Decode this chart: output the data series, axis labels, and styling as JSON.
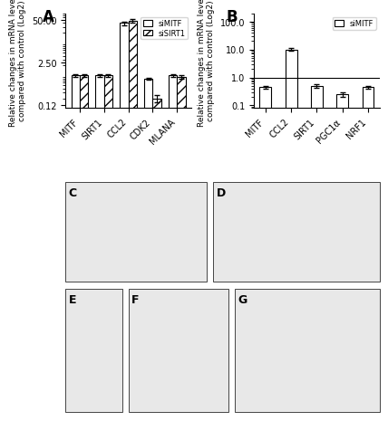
{
  "A": {
    "categories": [
      "MITF",
      "SIRT1",
      "CCL2",
      "CDK2",
      "MLANA"
    ],
    "siMITF": [
      1.0,
      1.0,
      40.0,
      0.8,
      1.0
    ],
    "siSIRT1": [
      1.0,
      1.0,
      47.0,
      0.2,
      0.9
    ],
    "siMITF_err": [
      0.1,
      0.1,
      5.0,
      0.05,
      0.1
    ],
    "siSIRT1_err": [
      0.1,
      0.1,
      5.0,
      0.05,
      0.1
    ],
    "ylabel": "Relative changes in mRNA level\ncompared with control (Log2)",
    "yticks": [
      0.125,
      2.5,
      50
    ],
    "ylim": [
      0.1,
      80
    ],
    "title": "A"
  },
  "B": {
    "categories": [
      "MITF",
      "CCL2",
      "SIRT1",
      "PGC1α",
      "NRF1"
    ],
    "siMITF": [
      0.45,
      10.0,
      0.5,
      0.25,
      0.45
    ],
    "siMITF_err": [
      0.05,
      1.0,
      0.06,
      0.05,
      0.05
    ],
    "ylabel": "Relative changes in mRNA level\ncompared with control (Log2)",
    "yticks": [
      0.1,
      1,
      10,
      100
    ],
    "ylim": [
      0.08,
      200
    ],
    "title": "B"
  },
  "bar_width": 0.35,
  "siMITF_color": "white",
  "siSIRT1_color": "white",
  "siSIRT1_hatch": "///",
  "edge_color": "black"
}
